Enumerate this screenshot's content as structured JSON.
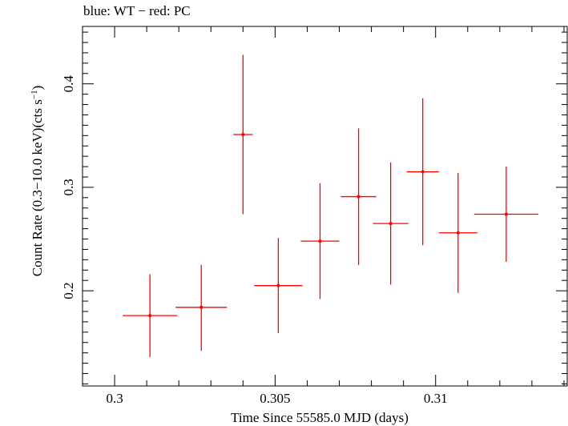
{
  "chart_data": {
    "type": "scatter",
    "title": "blue: WT − red: PC",
    "xlabel": "Time Since 55585.0 MJD (days)",
    "ylabel": "Count Rate (0.3−10.0 keV)(cts s",
    "ylabel_sup": "−1",
    "ylabel_close": ")",
    "xlim": [
      0.299,
      0.3141
    ],
    "ylim": [
      0.108,
      0.4555
    ],
    "x_ticks_major": [
      0.3,
      0.305,
      0.31
    ],
    "x_tick_labels": [
      "0.3",
      "0.305",
      "0.31"
    ],
    "x_ticks_minor": [
      0.301,
      0.302,
      0.303,
      0.304,
      0.306,
      0.307,
      0.308,
      0.309,
      0.311,
      0.312,
      0.313,
      0.314
    ],
    "y_ticks_major": [
      0.2,
      0.3,
      0.4
    ],
    "y_tick_labels": [
      "0.2",
      "0.3",
      "0.4"
    ],
    "y_ticks_minor": [
      0.11,
      0.12,
      0.13,
      0.14,
      0.15,
      0.16,
      0.17,
      0.18,
      0.19,
      0.21,
      0.22,
      0.23,
      0.24,
      0.25,
      0.26,
      0.27,
      0.28,
      0.29,
      0.31,
      0.32,
      0.33,
      0.34,
      0.35,
      0.36,
      0.37,
      0.38,
      0.39,
      0.41,
      0.42,
      0.43,
      0.44,
      0.45
    ],
    "grid": false,
    "series": [
      {
        "color": "#ff0000",
        "points": [
          {
            "x": 0.3011,
            "xerr": 0.00085,
            "y": 0.176,
            "yerr_low": 0.04,
            "yerr_high": 0.04
          },
          {
            "x": 0.3027,
            "xerr": 0.0008,
            "y": 0.184,
            "yerr_low": 0.042,
            "yerr_high": 0.041
          },
          {
            "x": 0.304,
            "xerr": 0.0003,
            "y": 0.351,
            "yerr_low": 0.077,
            "yerr_high": 0.077
          },
          {
            "x": 0.3051,
            "xerr": 0.00075,
            "y": 0.205,
            "yerr_low": 0.046,
            "yerr_high": 0.046
          },
          {
            "x": 0.3064,
            "xerr": 0.0006,
            "y": 0.248,
            "yerr_low": 0.056,
            "yerr_high": 0.056
          },
          {
            "x": 0.3076,
            "xerr": 0.00055,
            "y": 0.291,
            "yerr_low": 0.066,
            "yerr_high": 0.066
          },
          {
            "x": 0.3086,
            "xerr": 0.00055,
            "y": 0.265,
            "yerr_low": 0.059,
            "yerr_high": 0.059
          },
          {
            "x": 0.3096,
            "xerr": 0.0005,
            "y": 0.315,
            "yerr_low": 0.071,
            "yerr_high": 0.071
          },
          {
            "x": 0.3107,
            "xerr": 0.0006,
            "y": 0.256,
            "yerr_low": 0.058,
            "yerr_high": 0.058
          },
          {
            "x": 0.3122,
            "xerr": 0.001,
            "y": 0.274,
            "yerr_low": 0.046,
            "yerr_high": 0.046
          }
        ]
      }
    ]
  }
}
